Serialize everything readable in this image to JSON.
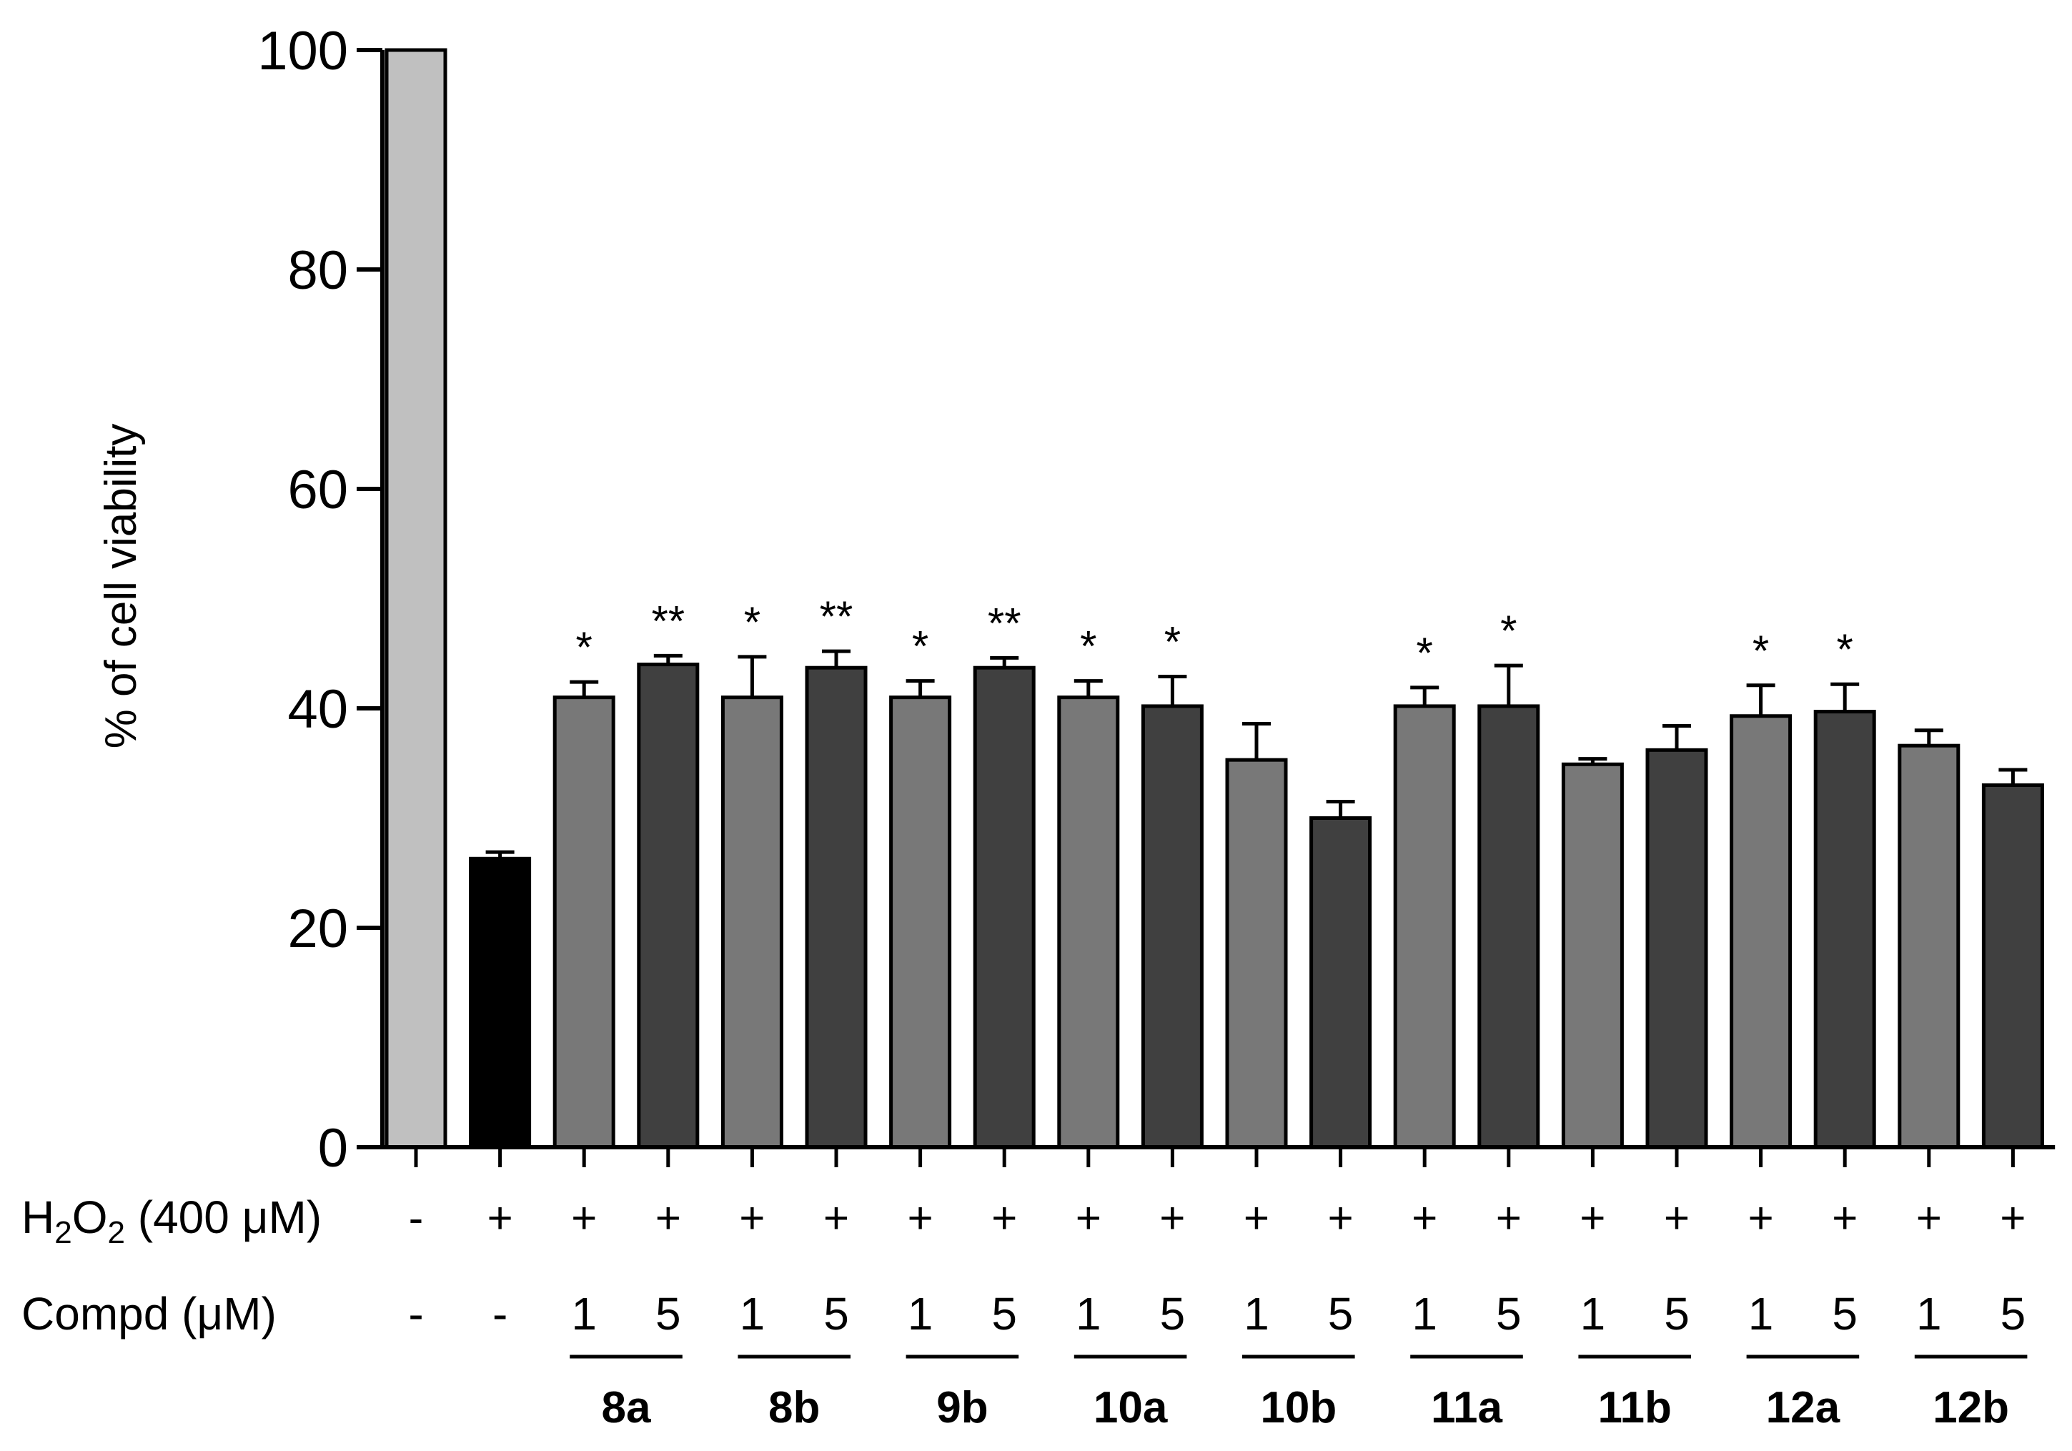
{
  "chart_data": {
    "type": "bar",
    "title": "",
    "xlabel": "",
    "ylabel": "% of cell viability",
    "ylim": [
      0,
      100
    ],
    "yticks": [
      0,
      20,
      40,
      60,
      80,
      100
    ],
    "grid": false,
    "legend": "none",
    "colors": {
      "control": "#c0c0c0",
      "h2o2": "#000000",
      "dose_1": "#787878",
      "dose_5": "#404040",
      "error_bar": "#000000"
    },
    "row_labels": {
      "h2o2": "H2O2 (400 μM)",
      "compd": "Compd (μM)"
    },
    "bars": [
      {
        "h2o2": "-",
        "compd": "-",
        "value": 100.0,
        "error": 0.0,
        "sig": "",
        "fill": "control"
      },
      {
        "h2o2": "+",
        "compd": "-",
        "value": 26.3,
        "error": 0.6,
        "sig": "",
        "fill": "h2o2"
      },
      {
        "h2o2": "+",
        "compd": "1",
        "value": 41.0,
        "error": 1.4,
        "sig": "*",
        "fill": "dose_1"
      },
      {
        "h2o2": "+",
        "compd": "5",
        "value": 44.0,
        "error": 0.8,
        "sig": "**",
        "fill": "dose_5"
      },
      {
        "h2o2": "+",
        "compd": "1",
        "value": 41.0,
        "error": 3.7,
        "sig": "*",
        "fill": "dose_1"
      },
      {
        "h2o2": "+",
        "compd": "5",
        "value": 43.7,
        "error": 1.5,
        "sig": "**",
        "fill": "dose_5"
      },
      {
        "h2o2": "+",
        "compd": "1",
        "value": 41.0,
        "error": 1.5,
        "sig": "*",
        "fill": "dose_1"
      },
      {
        "h2o2": "+",
        "compd": "5",
        "value": 43.7,
        "error": 0.9,
        "sig": "**",
        "fill": "dose_5"
      },
      {
        "h2o2": "+",
        "compd": "1",
        "value": 41.0,
        "error": 1.5,
        "sig": "*",
        "fill": "dose_1"
      },
      {
        "h2o2": "+",
        "compd": "5",
        "value": 40.2,
        "error": 2.7,
        "sig": "*",
        "fill": "dose_5"
      },
      {
        "h2o2": "+",
        "compd": "1",
        "value": 35.3,
        "error": 3.3,
        "sig": "",
        "fill": "dose_1"
      },
      {
        "h2o2": "+",
        "compd": "5",
        "value": 30.0,
        "error": 1.5,
        "sig": "",
        "fill": "dose_5"
      },
      {
        "h2o2": "+",
        "compd": "1",
        "value": 40.2,
        "error": 1.7,
        "sig": "*",
        "fill": "dose_1"
      },
      {
        "h2o2": "+",
        "compd": "5",
        "value": 40.2,
        "error": 3.7,
        "sig": "*",
        "fill": "dose_5"
      },
      {
        "h2o2": "+",
        "compd": "1",
        "value": 34.9,
        "error": 0.5,
        "sig": "",
        "fill": "dose_1"
      },
      {
        "h2o2": "+",
        "compd": "5",
        "value": 36.2,
        "error": 2.2,
        "sig": "",
        "fill": "dose_5"
      },
      {
        "h2o2": "+",
        "compd": "1",
        "value": 39.3,
        "error": 2.8,
        "sig": "*",
        "fill": "dose_1"
      },
      {
        "h2o2": "+",
        "compd": "5",
        "value": 39.7,
        "error": 2.5,
        "sig": "*",
        "fill": "dose_5"
      },
      {
        "h2o2": "+",
        "compd": "1",
        "value": 36.6,
        "error": 1.4,
        "sig": "",
        "fill": "dose_1"
      },
      {
        "h2o2": "+",
        "compd": "5",
        "value": 33.0,
        "error": 1.4,
        "sig": "",
        "fill": "dose_5"
      }
    ],
    "groups": [
      {
        "label": "8a",
        "bars": [
          2,
          3
        ]
      },
      {
        "label": "8b",
        "bars": [
          4,
          5
        ]
      },
      {
        "label": "9b",
        "bars": [
          6,
          7
        ]
      },
      {
        "label": "10a",
        "bars": [
          8,
          9
        ]
      },
      {
        "label": "10b",
        "bars": [
          10,
          11
        ]
      },
      {
        "label": "11a",
        "bars": [
          12,
          13
        ]
      },
      {
        "label": "11b",
        "bars": [
          14,
          15
        ]
      },
      {
        "label": "12a",
        "bars": [
          16,
          17
        ]
      },
      {
        "label": "12b",
        "bars": [
          18,
          19
        ]
      }
    ]
  }
}
